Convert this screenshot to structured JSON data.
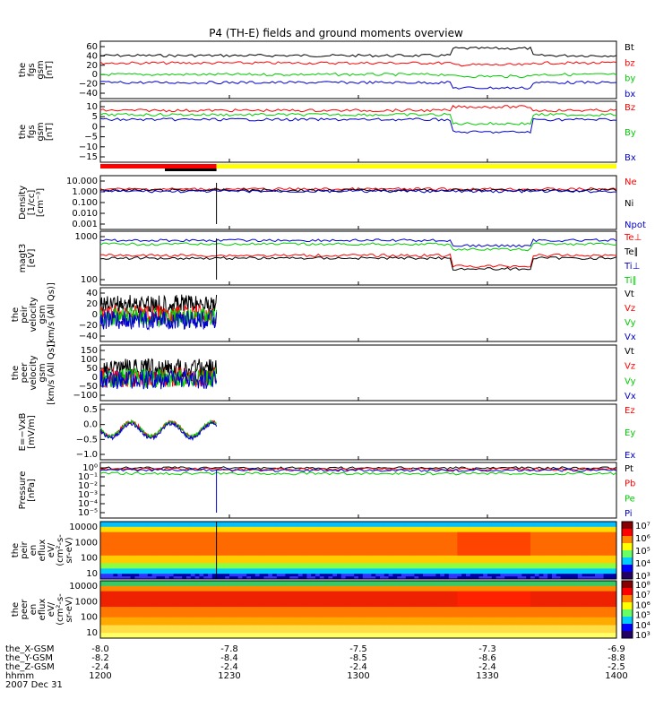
{
  "title": "P4 (TH-E) fields and ground moments overview",
  "chart_data": {
    "type": "line",
    "x_axis": {
      "rows": [
        {
          "label": "the_X-GSM",
          "values": [
            "-8.0",
            "-7.8",
            "-7.5",
            "-7.3",
            "-6.9"
          ]
        },
        {
          "label": "the_Y-GSM",
          "values": [
            "-8.2",
            "-8.4",
            "-8.5",
            "-8.6",
            "-8.8"
          ]
        },
        {
          "label": "the_Z-GSM",
          "values": [
            "-2.4",
            "-2.4",
            "-2.4",
            "-2.4",
            "-2.5"
          ]
        },
        {
          "label": "hhmm",
          "values": [
            "1200",
            "1230",
            "1300",
            "1330",
            "1400"
          ]
        }
      ],
      "date_label": "2007 Dec 31",
      "range": [
        1200,
        1400
      ]
    },
    "panels": [
      {
        "id": "fgs",
        "ylabel": [
          "the",
          "fgs",
          "gsm",
          "[nT]"
        ],
        "ticks": [
          "60",
          "40",
          "20",
          "0",
          "−20",
          "−40"
        ],
        "ylim": [
          -40,
          60
        ],
        "series": [
          {
            "name": "Bt",
            "color": "#000000",
            "level": 0.75
          },
          {
            "name": "bz",
            "color": "#ff0000",
            "level": 0.62
          },
          {
            "name": "by",
            "color": "#00cc00",
            "level": 0.42
          },
          {
            "name": "bx",
            "color": "#0000cc",
            "level": 0.28
          }
        ]
      },
      {
        "id": "fgs-dsl",
        "ylabel": [
          "the",
          "fgs",
          "gsm",
          "[nT]"
        ],
        "ticks": [
          "10",
          "5",
          "0",
          "−5",
          "−10",
          "−15"
        ],
        "ylim": [
          -15,
          10
        ],
        "series": [
          {
            "name": "Bz",
            "color": "#ff0000",
            "level": 0.85
          },
          {
            "name": "By",
            "color": "#00cc00",
            "level": 0.78
          },
          {
            "name": "Bx",
            "color": "#0000cc",
            "level": 0.7
          }
        ]
      },
      {
        "id": "density",
        "ylabel": [
          "Density",
          "[1/cc]",
          "[cm⁻³]"
        ],
        "ticks": [
          "10.000",
          "1.000",
          "0.100",
          "0.010",
          "0.001"
        ],
        "ylim": [
          0.001,
          10
        ],
        "series": [
          {
            "name": "Ne",
            "color": "#ff0000",
            "level": 0.75
          },
          {
            "name": "Ni",
            "color": "#000000",
            "level": 0.73
          },
          {
            "name": "Npot",
            "color": "#0000cc",
            "level": 0.71
          }
        ]
      },
      {
        "id": "mag",
        "ylabel": [
          "magt3",
          "[eV]"
        ],
        "ticks": [
          "1000",
          "100"
        ],
        "ylim": [
          100,
          10000
        ],
        "series": [
          {
            "name": "Te⊥",
            "color": "#ff0000",
            "level": 0.55
          },
          {
            "name": "Te∥",
            "color": "#000000",
            "level": 0.5
          },
          {
            "name": "Ti⊥",
            "color": "#0000cc",
            "level": 0.83
          },
          {
            "name": "Ti∥",
            "color": "#00cc00",
            "level": 0.76
          }
        ]
      },
      {
        "id": "peir-vel",
        "ylabel": [
          "the",
          "peir",
          "velocity",
          "gsm",
          "[km/s (All Qs)]"
        ],
        "ticks": [
          "40",
          "20",
          "0",
          "−20",
          "−40"
        ],
        "ylim": [
          -40,
          40
        ],
        "series": [
          {
            "name": "Vt",
            "color": "#000000",
            "level": 0.7
          },
          {
            "name": "Vz",
            "color": "#ff0000",
            "level": 0.5
          },
          {
            "name": "Vy",
            "color": "#00cc00",
            "level": 0.45
          },
          {
            "name": "Vx",
            "color": "#0000cc",
            "level": 0.4
          }
        ]
      },
      {
        "id": "peer-vel",
        "ylabel": [
          "the",
          "peer",
          "velocity",
          "gsm",
          "[km/s (All Qs)]"
        ],
        "ticks": [
          "150",
          "100",
          "50",
          "0",
          "−50",
          "−100"
        ],
        "ylim": [
          -100,
          150
        ],
        "series": [
          {
            "name": "Vt",
            "color": "#000000",
            "level": 0.58
          },
          {
            "name": "Vz",
            "color": "#ff0000",
            "level": 0.42
          },
          {
            "name": "Vy",
            "color": "#00cc00",
            "level": 0.4
          },
          {
            "name": "Vx",
            "color": "#0000cc",
            "level": 0.38
          }
        ]
      },
      {
        "id": "efield",
        "ylabel": [
          "E=−VxB",
          "[mV/m]"
        ],
        "ticks": [
          "0.5",
          "0.0",
          "−0.5",
          "−1.0"
        ],
        "ylim": [
          -1,
          1
        ],
        "series": [
          {
            "name": "Ez",
            "color": "#ff0000",
            "level": 0.55
          },
          {
            "name": "Ey",
            "color": "#00cc00",
            "level": 0.55
          },
          {
            "name": "Ex",
            "color": "#0000cc",
            "level": 0.52
          }
        ]
      },
      {
        "id": "pressure",
        "ylabel": [
          "Pressure",
          "[nPa]"
        ],
        "ticks": [
          "10⁰",
          "10⁻¹",
          "10⁻²",
          "10⁻³",
          "10⁻⁴",
          "10⁻⁵"
        ],
        "ylim": [
          1e-05,
          1
        ],
        "series": [
          {
            "name": "Pt",
            "color": "#000000",
            "level": 0.9
          },
          {
            "name": "Pb",
            "color": "#ff0000",
            "level": 0.88
          },
          {
            "name": "Pe",
            "color": "#00cc00",
            "level": 0.8
          },
          {
            "name": "Pi",
            "color": "#0000cc",
            "level": 0.86
          }
        ]
      },
      {
        "id": "peir-spec",
        "ylabel": [
          "the",
          "peir",
          "en",
          "eflux",
          "eV/",
          "(cm²-s-",
          "sr-eV)"
        ],
        "ticks": [
          "10000",
          "1000",
          "100",
          "10"
        ],
        "type": "heatmap",
        "colorbar": [
          "10⁷",
          "10⁶",
          "10⁵",
          "10⁴",
          "10³"
        ]
      },
      {
        "id": "peer-spec",
        "ylabel": [
          "the",
          "peer",
          "en",
          "eflux",
          "eV/",
          "(cm²-s-",
          "sr-eV)"
        ],
        "ticks": [
          "10000",
          "1000",
          "100",
          "10"
        ],
        "type": "heatmap",
        "colorbar": [
          "10⁸",
          "10⁷",
          "10⁶",
          "10⁵",
          "10⁴",
          "10³"
        ]
      }
    ],
    "mode_bars": [
      {
        "color": "#ff0000",
        "from": 1200,
        "to": 1227
      },
      {
        "color": "#000000",
        "from": 1215,
        "to": 1227
      },
      {
        "color": "#ffff00",
        "from": 1227,
        "to": 1400
      }
    ]
  }
}
